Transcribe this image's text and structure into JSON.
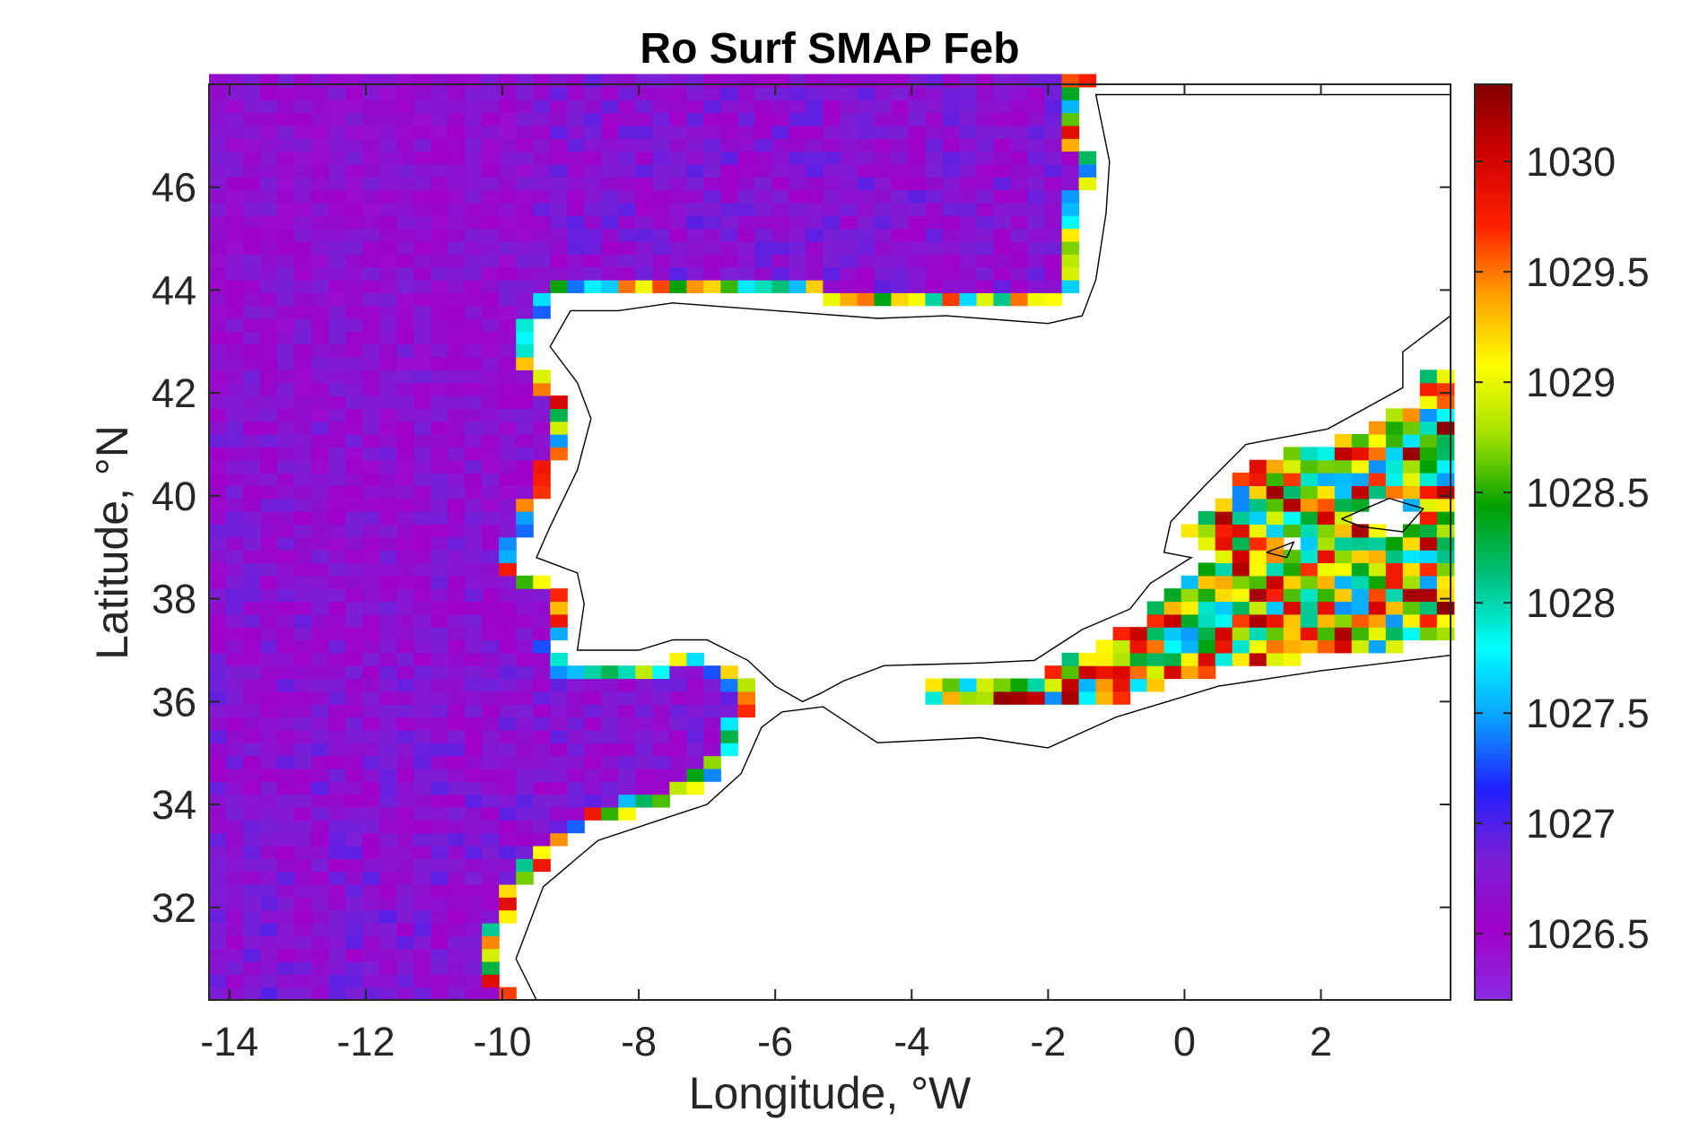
{
  "chart_data": {
    "type": "heatmap",
    "title": "Ro Surf SMAP Feb",
    "xlabel": "Longitude, °W",
    "ylabel": "Latitude, °N",
    "xlim": [
      -14.3,
      3.9
    ],
    "ylim": [
      30.2,
      48.0
    ],
    "xticks": [
      -14,
      -12,
      -10,
      -8,
      -6,
      -4,
      -2,
      0,
      2
    ],
    "xtick_labels": [
      "-14",
      "-12",
      "-10",
      "-8",
      "-6",
      "-4",
      "-2",
      "0",
      "2"
    ],
    "yticks": [
      32,
      34,
      36,
      38,
      40,
      42,
      44,
      46
    ],
    "ytick_labels": [
      "32",
      "34",
      "36",
      "38",
      "40",
      "42",
      "44",
      "46"
    ],
    "grid_resolution_deg": 0.25,
    "colorbar": {
      "label": "",
      "clim": [
        1026.2,
        1030.35
      ],
      "ticks": [
        1026.5,
        1027,
        1027.5,
        1028,
        1028.5,
        1029,
        1029.5,
        1030
      ],
      "tick_labels": [
        "1026.5",
        "1027",
        "1027.5",
        "1028",
        "1028.5",
        "1029",
        "1029.5",
        "1030"
      ],
      "colormap": [
        "#8a2be2",
        "#a000c8",
        "#7b1fd6",
        "#2020ff",
        "#0aa0ff",
        "#00ffff",
        "#00c080",
        "#00a000",
        "#a0e000",
        "#ffff00",
        "#ffa000",
        "#ff2000",
        "#d00000",
        "#800000"
      ]
    },
    "regions": {
      "atlantic_open_ocean": {
        "typical_value": 1026.8,
        "range": [
          1026.5,
          1027.3
        ]
      },
      "bay_of_biscay": {
        "typical_value": 1026.9,
        "range": [
          1026.6,
          1027.4
        ]
      },
      "coastal_edges": {
        "range": [
          1027.5,
          1030.3
        ]
      },
      "mediterranean_west": {
        "range": [
          1027.3,
          1030.3
        ]
      }
    },
    "grid": false,
    "coastline": true
  }
}
